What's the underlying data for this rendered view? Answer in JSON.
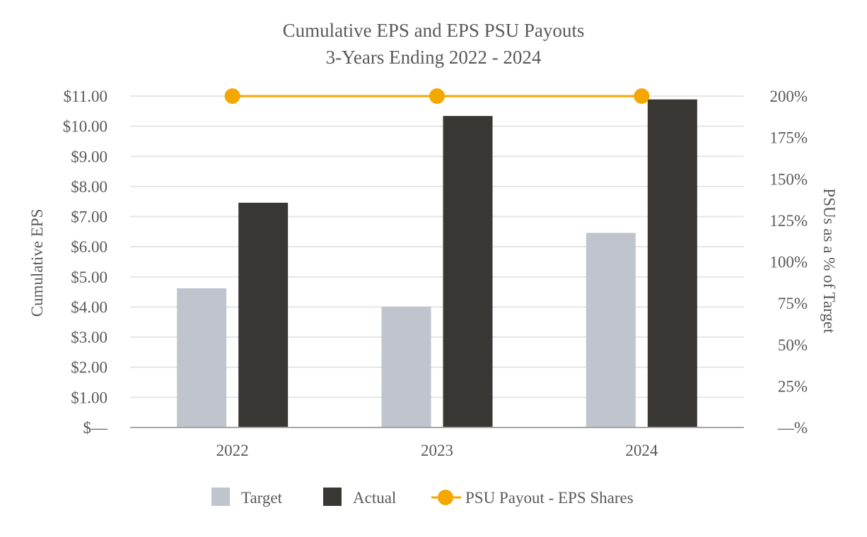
{
  "chart_data": {
    "type": "bar",
    "title": "Cumulative EPS and EPS PSU Payouts",
    "subtitle": "3-Years Ending 2022 - 2024",
    "categories": [
      "2022",
      "2023",
      "2024"
    ],
    "series": [
      {
        "name": "Target",
        "kind": "bar",
        "axis": "left",
        "values": [
          4.62,
          4.01,
          6.46
        ],
        "color": "#c0c4cd"
      },
      {
        "name": "Actual",
        "kind": "bar",
        "axis": "left",
        "values": [
          7.46,
          10.34,
          10.89
        ],
        "color": "#393733"
      },
      {
        "name": "PSU Payout - EPS Shares",
        "kind": "line",
        "axis": "right",
        "values": [
          200,
          200,
          200
        ],
        "color": "#f4a700"
      }
    ],
    "ylabel": "Cumulative EPS",
    "y2label": "PSUs as a % of Target",
    "ylim": [
      0,
      11
    ],
    "y2lim": [
      0,
      200
    ],
    "yticks": [
      "$—",
      "$1.00",
      "$2.00",
      "$3.00",
      "$4.00",
      "$5.00",
      "$6.00",
      "$7.00",
      "$8.00",
      "$9.00",
      "$10.00",
      "$11.00"
    ],
    "y2ticks": [
      "—%",
      "25%",
      "50%",
      "75%",
      "100%",
      "125%",
      "150%",
      "175%",
      "200%"
    ],
    "grid": true,
    "legend_position": "bottom"
  }
}
